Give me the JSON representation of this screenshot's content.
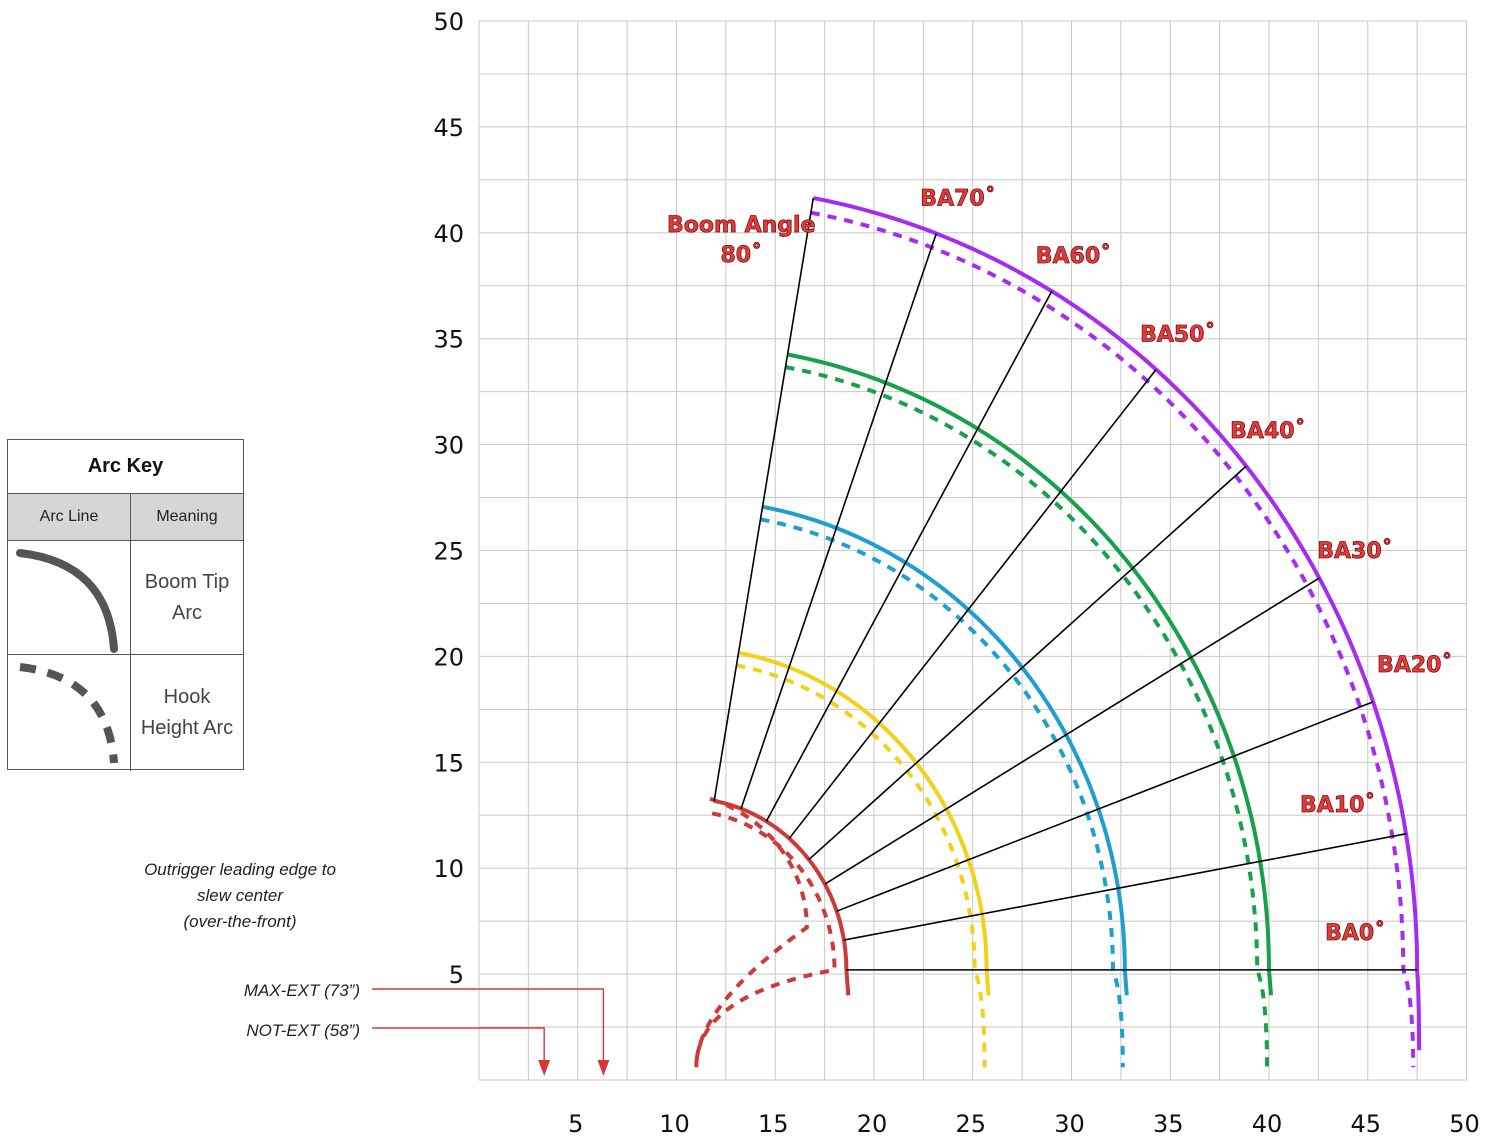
{
  "chart_data": {
    "type": "line",
    "title": "",
    "xlabel": "",
    "ylabel": "",
    "xlim": [
      0,
      50
    ],
    "ylim": [
      0,
      50
    ],
    "x_ticks": [
      "5",
      "10",
      "15",
      "20",
      "25",
      "30",
      "35",
      "40",
      "45",
      "50"
    ],
    "y_ticks": [
      "5",
      "10",
      "15",
      "20",
      "25",
      "30",
      "35",
      "40",
      "45",
      "50"
    ],
    "grid": true,
    "pivot": [
      10.5,
      5.2
    ],
    "boom_angles": [
      {
        "angle": 0,
        "label": "BA0˚"
      },
      {
        "angle": 10,
        "label": "BA10˚"
      },
      {
        "angle": 20,
        "label": "BA20˚"
      },
      {
        "angle": 30,
        "label": "BA30˚"
      },
      {
        "angle": 40,
        "label": "BA40˚"
      },
      {
        "angle": 50,
        "label": "BA50˚"
      },
      {
        "angle": 60,
        "label": "BA60˚"
      },
      {
        "angle": 70,
        "label": "BA70˚"
      },
      {
        "angle": 80,
        "label": "Boom Angle\n80˚"
      }
    ],
    "series": [
      {
        "color": "#cc3a3a",
        "tip_radius": 8.1,
        "hook_radius": 7.5,
        "hook_end_x": 11.0
      },
      {
        "color": "#f2d11a",
        "tip_radius": 15.2,
        "hook_radius": 14.6,
        "hook_end_x": 25.6
      },
      {
        "color": "#1e9fd0",
        "tip_radius": 22.2,
        "hook_radius": 21.6,
        "hook_end_x": 32.6
      },
      {
        "color": "#18a04a",
        "tip_radius": 29.5,
        "hook_radius": 28.9,
        "hook_end_x": 39.9
      },
      {
        "color": "#a52cf0",
        "tip_radius": 37.0,
        "hook_radius": 36.3,
        "hook_end_x": 47.3
      }
    ],
    "inner_tip_radius": 0.5,
    "inner_hook_radius": 7.1
  },
  "annotations": {
    "outrigger_lines": [
      "Outrigger leading edge to",
      "slew center",
      "(over-the-front)"
    ],
    "max_ext": "MAX-EXT (73”)",
    "not_ext": "NOT-EXT (58”)",
    "max_ext_x": 6.3,
    "not_ext_x": 3.3
  },
  "arc_key": {
    "title": "Arc Key",
    "col_line": "Arc Line",
    "col_meaning": "Meaning",
    "rows": [
      {
        "meaning": "Boom Tip Arc",
        "style": "solid"
      },
      {
        "meaning": "Hook Height Arc",
        "style": "dashed"
      }
    ]
  },
  "colors": {
    "grid": "#c8c8c8",
    "boom_line": "#000000",
    "arrow": "#d9363a",
    "key_line": "#555555"
  }
}
